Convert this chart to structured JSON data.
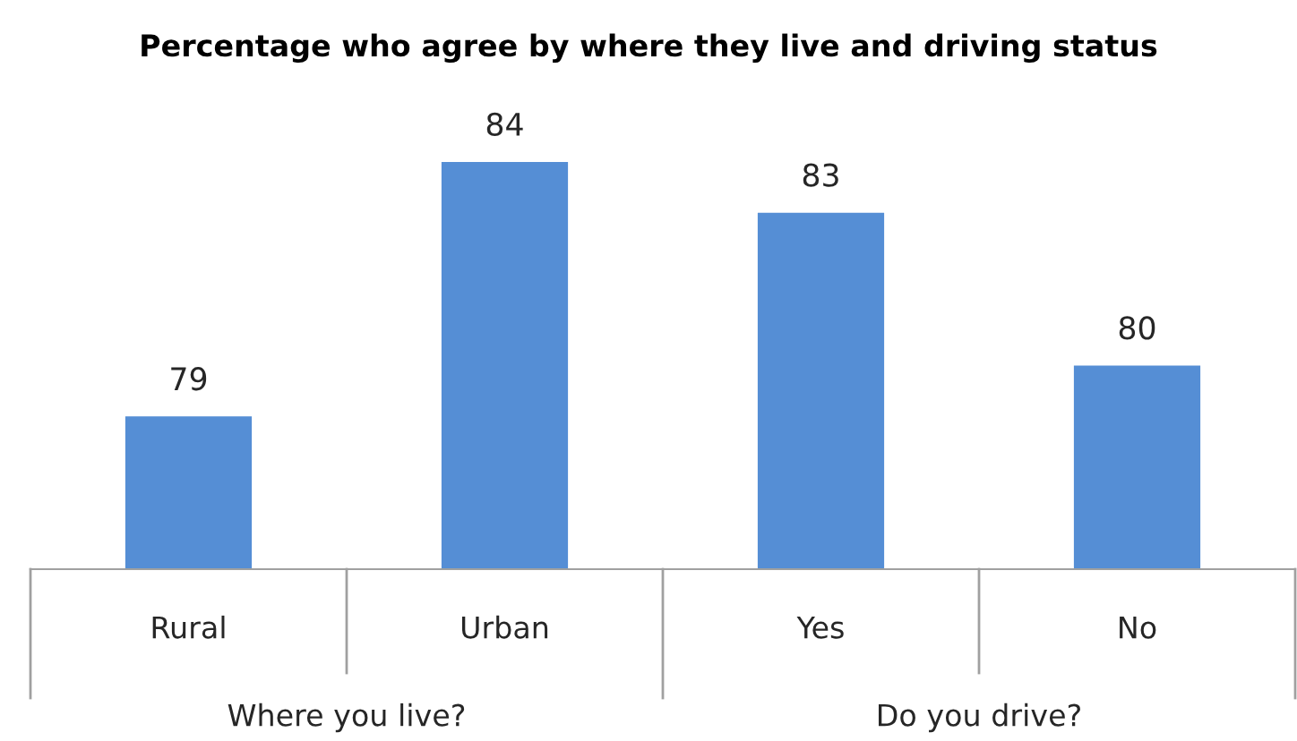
{
  "chart_data": {
    "type": "bar",
    "title": "Percentage who agree by where they live and driving status",
    "categories": [
      "Rural",
      "Urban",
      "Yes",
      "No"
    ],
    "values": [
      79,
      84,
      83,
      80
    ],
    "color": "#558ed5",
    "data_labels": true,
    "annotations": [
      "Where you live?",
      "Do you drive?"
    ]
  }
}
